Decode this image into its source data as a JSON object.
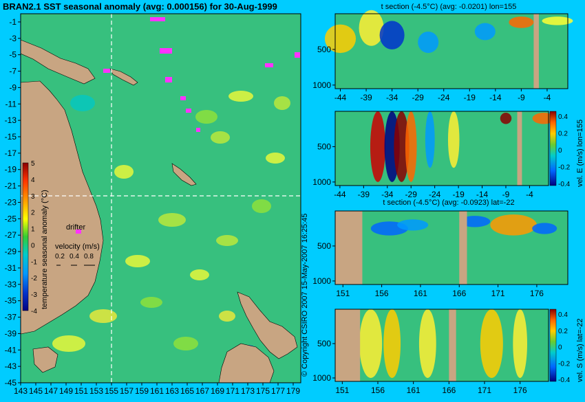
{
  "title": "BRAN2.1 SST seasonal anomaly (avg: 0.000156) for 30-Aug-1999",
  "colors": {
    "background": "#00ccff",
    "land": "#c8a582",
    "field": "#37c07e",
    "marker": "#ff33ff",
    "crosshair": "#ffffff"
  },
  "chart_data": [
    {
      "type": "heatmap",
      "name": "map",
      "title": "BRAN2.1 SST seasonal anomaly (avg: 0.000156) for 30-Aug-1999",
      "y_ticks": [
        "-1",
        "-3",
        "-5",
        "-7",
        "-9",
        "-11",
        "-13",
        "-15",
        "-17",
        "-19",
        "-21",
        "-23",
        "-25",
        "-27",
        "-29",
        "-31",
        "-33",
        "-35",
        "-37",
        "-39",
        "-41",
        "-43",
        "-45"
      ],
      "x_ticks": [
        "143",
        "145",
        "147",
        "149",
        "151",
        "153",
        "155",
        "157",
        "159",
        "161",
        "163",
        "165",
        "167",
        "169",
        "171",
        "173",
        "175",
        "177",
        "179"
      ],
      "ylim": [
        -45,
        0
      ],
      "xlim": [
        143,
        180
      ],
      "crosshair": {
        "lon": 155,
        "lat": -22
      },
      "colorbar": {
        "label": "temperature seasonal anomaly (°C)",
        "ticks": [
          "5",
          "4",
          "3",
          "2",
          "1",
          "0",
          "-1",
          "-2",
          "-3",
          "-4"
        ],
        "range": [
          -4,
          5
        ]
      },
      "velocity_legend": {
        "title": "velocity (m/s)",
        "values": [
          "0.2",
          "0.4",
          "0.8"
        ]
      },
      "annotations": [
        "drifter"
      ]
    },
    {
      "type": "heatmap",
      "name": "t-section-lon",
      "title": "t section (-4.5°C) (avg: -0.0201) lon=155",
      "x_ticks": [
        "-44",
        "-39",
        "-34",
        "-29",
        "-24",
        "-19",
        "-14",
        "-9",
        "-4"
      ],
      "y_ticks": [
        "500",
        "1000"
      ],
      "xlim": [
        -45,
        0
      ],
      "ylim": [
        1050,
        0
      ]
    },
    {
      "type": "heatmap",
      "name": "vel-e-section",
      "colorbar_label": "vel. E (m/s) lon=155",
      "colorbar_ticks": [
        "0.4",
        "0.2",
        "0",
        "-0.2",
        "-0.4"
      ],
      "x_ticks": [
        "-44",
        "-39",
        "-34",
        "-29",
        "-24",
        "-19",
        "-14",
        "-9",
        "-4"
      ],
      "y_ticks": [
        "500",
        "1000"
      ],
      "xlim": [
        -45,
        0
      ],
      "ylim": [
        1050,
        0
      ]
    },
    {
      "type": "heatmap",
      "name": "t-section-lat",
      "title": "t section (-4.5°C) (avg: -0.0923) lat=-22",
      "x_ticks": [
        "151",
        "156",
        "161",
        "166",
        "171",
        "176"
      ],
      "y_ticks": [
        "500",
        "1000"
      ],
      "xlim": [
        150,
        180
      ],
      "ylim": [
        1050,
        0
      ]
    },
    {
      "type": "heatmap",
      "name": "vel-s-section",
      "colorbar_label": "vel. S (m/s) lat=-22",
      "colorbar_ticks": [
        "0.4",
        "0.2",
        "0",
        "-0.2",
        "-0.4"
      ],
      "x_ticks": [
        "151",
        "156",
        "161",
        "166",
        "171",
        "176"
      ],
      "y_ticks": [
        "500",
        "1000"
      ],
      "xlim": [
        150,
        180
      ],
      "ylim": [
        1050,
        0
      ]
    }
  ],
  "watermark": "© Copyright CSIRO 2007   15-May-2007 16:25:45"
}
